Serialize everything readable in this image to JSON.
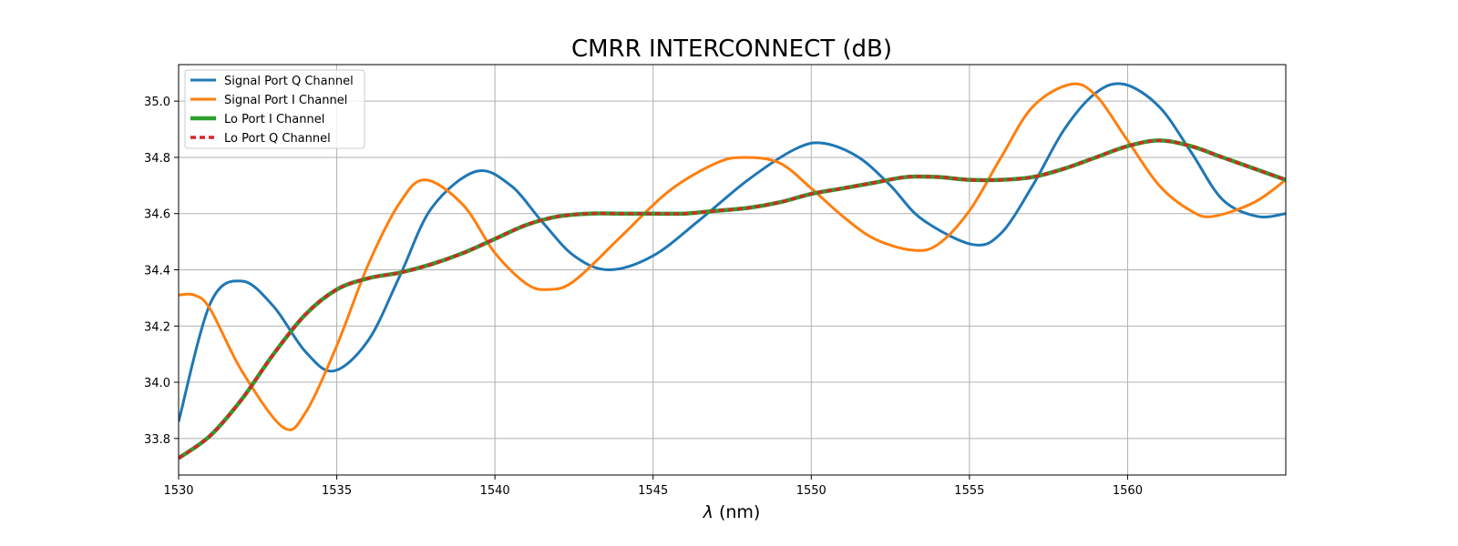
{
  "chart_data": {
    "type": "line",
    "title": "CMRR INTERCONNECT (dB)",
    "xlabel_symbol": "λ",
    "xlabel_unit": " (nm)",
    "ylabel": "",
    "xlim": [
      1530,
      1565
    ],
    "ylim": [
      33.67,
      35.13
    ],
    "xticks": [
      1530,
      1535,
      1540,
      1545,
      1550,
      1555,
      1560
    ],
    "xtick_labels": [
      "1530",
      "1535",
      "1540",
      "1545",
      "1550",
      "1555",
      "1560"
    ],
    "yticks": [
      33.8,
      34.0,
      34.2,
      34.4,
      34.6,
      34.8,
      35.0
    ],
    "ytick_labels": [
      "33.8",
      "34.0",
      "34.2",
      "34.4",
      "34.6",
      "34.8",
      "35.0"
    ],
    "grid": true,
    "legend_position": "top-left",
    "series": [
      {
        "name": "Signal Port Q Channel",
        "color": "#1f77b4",
        "style": "solid",
        "x": [
          1530,
          1531,
          1532,
          1533,
          1534,
          1534.9,
          1536,
          1537,
          1538,
          1539.4,
          1540.5,
          1541.5,
          1542.5,
          1543.6,
          1545,
          1546.5,
          1548,
          1549.5,
          1550.4,
          1551.5,
          1552.5,
          1553.5,
          1555.1,
          1556,
          1557,
          1558,
          1559,
          1559.9,
          1561,
          1562,
          1563,
          1564.1,
          1565
        ],
        "y": [
          33.86,
          34.28,
          34.36,
          34.27,
          34.11,
          34.04,
          34.15,
          34.38,
          34.62,
          34.75,
          34.7,
          34.57,
          34.45,
          34.4,
          34.45,
          34.58,
          34.72,
          34.83,
          34.85,
          34.8,
          34.7,
          34.58,
          34.49,
          34.53,
          34.7,
          34.9,
          35.03,
          35.06,
          34.98,
          34.82,
          34.65,
          34.59,
          34.6
        ]
      },
      {
        "name": "Signal Port I Channel",
        "color": "#ff7f0e",
        "style": "solid",
        "x": [
          1530,
          1530.5,
          1531,
          1532,
          1533.3,
          1534,
          1535,
          1536,
          1537,
          1537.8,
          1539,
          1540,
          1541,
          1541.7,
          1542.5,
          1544,
          1545.5,
          1547,
          1547.9,
          1549,
          1550,
          1551,
          1552,
          1553.2,
          1554,
          1555,
          1556,
          1557,
          1558.2,
          1559,
          1560,
          1561,
          1562,
          1562.7,
          1564,
          1565
        ],
        "y": [
          34.31,
          34.31,
          34.26,
          34.04,
          33.84,
          33.89,
          34.13,
          34.42,
          34.64,
          34.72,
          34.63,
          34.46,
          34.35,
          34.33,
          34.36,
          34.52,
          34.68,
          34.78,
          34.8,
          34.78,
          34.69,
          34.59,
          34.51,
          34.47,
          34.49,
          34.61,
          34.8,
          34.98,
          35.06,
          35.02,
          34.86,
          34.7,
          34.61,
          34.59,
          34.64,
          34.72
        ]
      },
      {
        "name": "Lo Port I Channel",
        "color": "#2ca02c",
        "style": "solid",
        "x": [
          1530,
          1531,
          1532,
          1533,
          1534,
          1535,
          1536,
          1537,
          1538,
          1539,
          1540,
          1541,
          1542,
          1543,
          1544,
          1545,
          1546,
          1547,
          1548,
          1549,
          1550,
          1551,
          1552,
          1553,
          1554,
          1555,
          1556,
          1557,
          1558,
          1559,
          1560,
          1561,
          1562,
          1563,
          1564,
          1565
        ],
        "y": [
          33.73,
          33.81,
          33.94,
          34.1,
          34.24,
          34.33,
          34.37,
          34.39,
          34.42,
          34.46,
          34.51,
          34.56,
          34.59,
          34.6,
          34.6,
          34.6,
          34.6,
          34.61,
          34.62,
          34.64,
          34.67,
          34.69,
          34.71,
          34.73,
          34.73,
          34.72,
          34.72,
          34.73,
          34.76,
          34.8,
          34.84,
          34.86,
          34.84,
          34.8,
          34.76,
          34.72
        ]
      },
      {
        "name": "Lo Port Q Channel",
        "color": "#d62728",
        "style": "dashed",
        "x": [
          1530,
          1531,
          1532,
          1533,
          1534,
          1535,
          1536,
          1537,
          1538,
          1539,
          1540,
          1541,
          1542,
          1543,
          1544,
          1545,
          1546,
          1547,
          1548,
          1549,
          1550,
          1551,
          1552,
          1553,
          1554,
          1555,
          1556,
          1557,
          1558,
          1559,
          1560,
          1561,
          1562,
          1563,
          1564,
          1565
        ],
        "y": [
          33.73,
          33.81,
          33.94,
          34.1,
          34.24,
          34.33,
          34.37,
          34.39,
          34.42,
          34.46,
          34.51,
          34.56,
          34.59,
          34.6,
          34.6,
          34.6,
          34.6,
          34.61,
          34.62,
          34.64,
          34.67,
          34.69,
          34.71,
          34.73,
          34.73,
          34.72,
          34.72,
          34.73,
          34.76,
          34.8,
          34.84,
          34.86,
          34.84,
          34.8,
          34.76,
          34.72
        ]
      }
    ]
  }
}
